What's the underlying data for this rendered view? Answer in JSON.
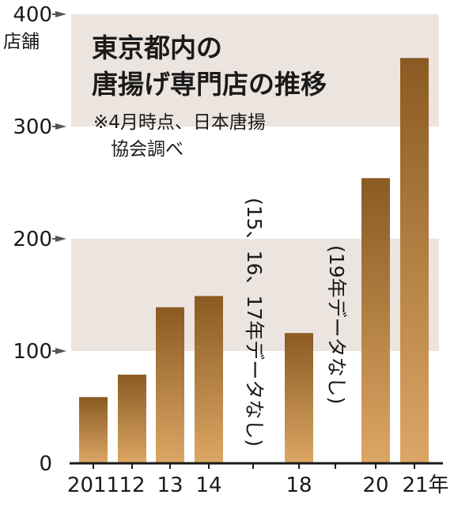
{
  "chart_data": {
    "type": "bar",
    "title": "東京都内の唐揚げ専門店の推移",
    "title_lines": [
      "東京都内の",
      "唐揚げ専門店の推移"
    ],
    "note_lines": [
      "※4月時点、日本唐揚",
      "協会調べ"
    ],
    "ylabel": "店舗",
    "ylim": [
      0,
      400
    ],
    "yticks": [
      "0",
      "100",
      "200",
      "300",
      "400"
    ],
    "categories": [
      "2011",
      "12",
      "13",
      "14",
      "18",
      "20",
      "21"
    ],
    "category_axis_labels": [
      "2011",
      "12",
      "13",
      "14",
      "18",
      "20",
      "21年"
    ],
    "values": [
      59,
      79,
      139,
      149,
      116,
      254,
      361
    ],
    "gaps": [
      {
        "lines": [
          "(15、",
          "16、",
          "17年",
          "データなし)"
        ]
      },
      {
        "lines": [
          "(19年",
          "データなし)"
        ]
      }
    ],
    "background_bands": [
      [
        100,
        200
      ],
      [
        300,
        400
      ]
    ],
    "colors": {
      "bar_dark": "#8a5a22",
      "bar_light": "#dca765",
      "band": "#ece4df",
      "axis": "#1a1a1a"
    }
  }
}
